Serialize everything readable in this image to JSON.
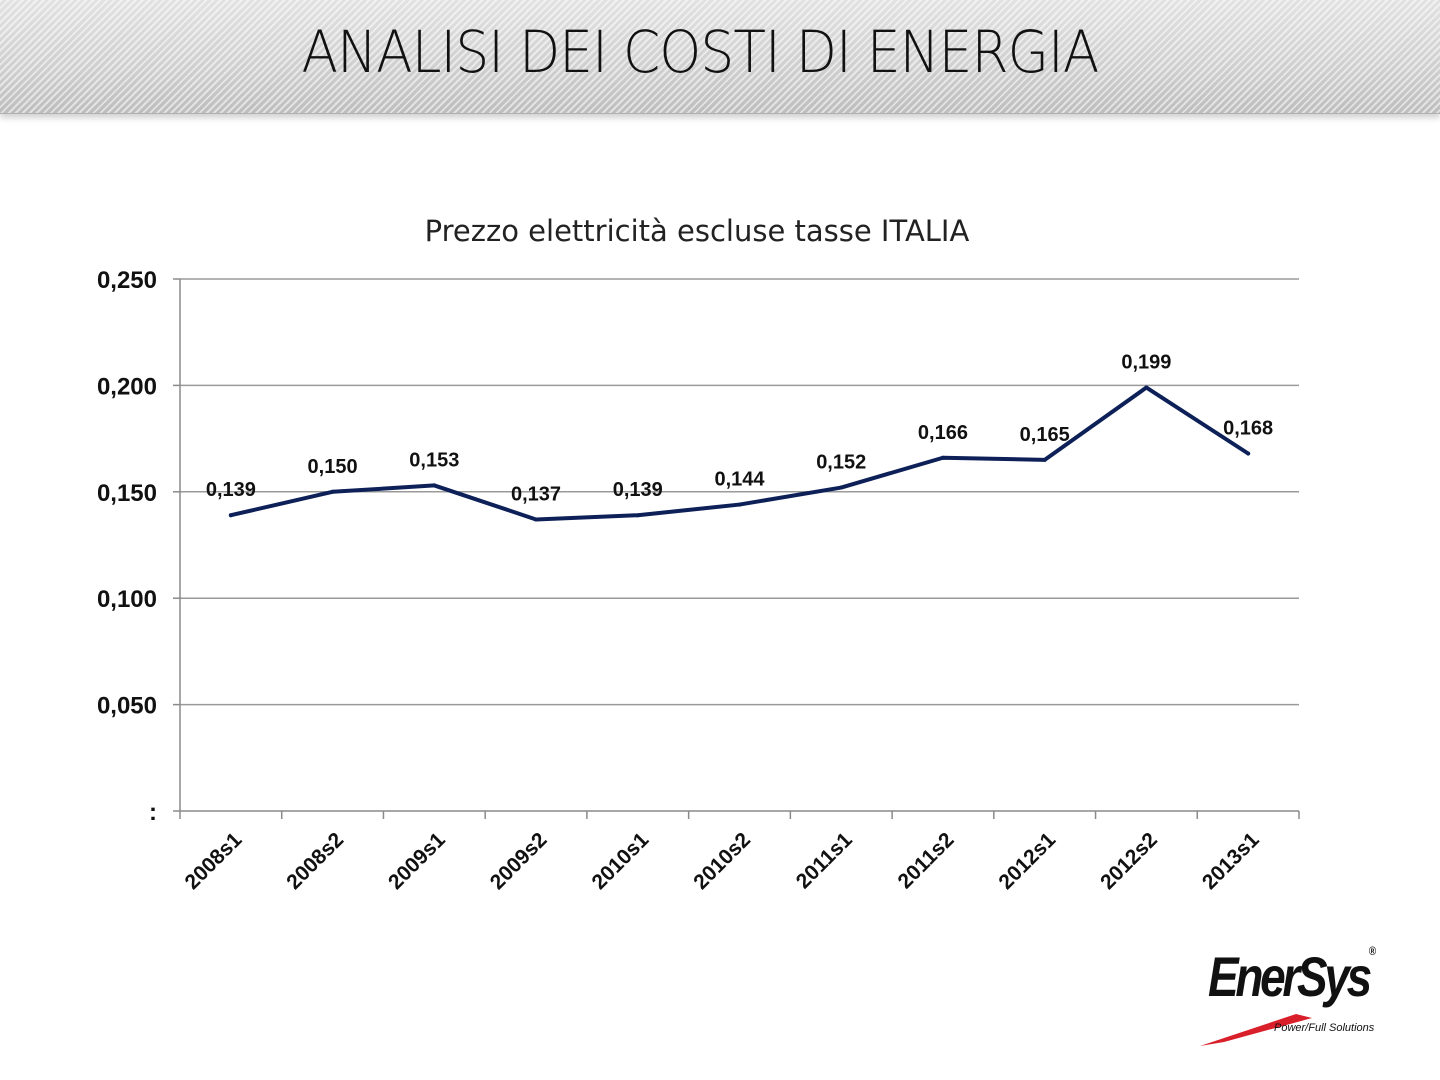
{
  "slide": {
    "title": "ANALISI DEI COSTI DI ENERGIA"
  },
  "logo": {
    "name": "EnerSys",
    "registered": "®",
    "tagline": "Power/Full Solutions",
    "accent_color": "#d9202a"
  },
  "chart_data": {
    "type": "line",
    "title": "Prezzo elettricità escluse tasse ITALIA",
    "xlabel": "",
    "ylabel": "",
    "categories": [
      "2008s1",
      "2008s2",
      "2009s1",
      "2009s2",
      "2010s1",
      "2010s2",
      "2011s1",
      "2011s2",
      "2012s1",
      "2012s2",
      "2013s1"
    ],
    "series": [
      {
        "values": [
          0.139,
          0.15,
          0.153,
          0.137,
          0.139,
          0.144,
          0.152,
          0.166,
          0.165,
          0.199,
          0.168
        ],
        "labels": [
          "0,139",
          "0,150",
          "0,153",
          "0,137",
          "0,139",
          "0,144",
          "0,152",
          "0,166",
          "0,165",
          "0,199",
          "0,168"
        ],
        "color": "#0d2158"
      }
    ],
    "ylim": [
      0,
      0.25
    ],
    "yticks": [
      0,
      0.05,
      0.1,
      0.15,
      0.2,
      0.25
    ],
    "ytick_labels": [
      ":",
      "0,050",
      "0,100",
      "0,150",
      "0,200",
      "0,250"
    ],
    "grid": true,
    "gridline_color": "#9a9a9a",
    "legend": "none"
  }
}
